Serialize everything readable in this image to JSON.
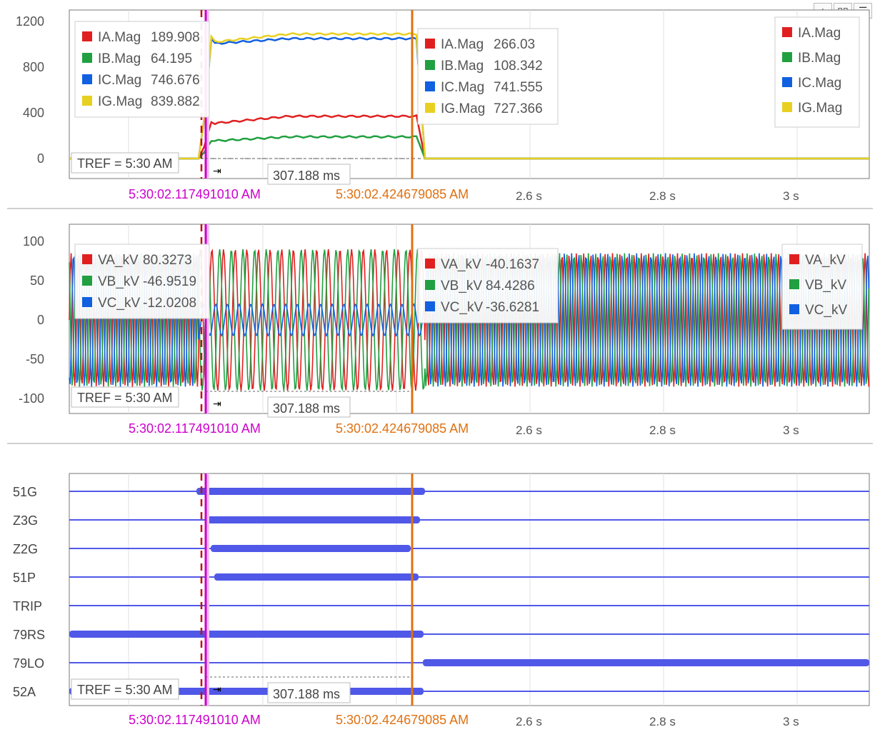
{
  "toolbar": {
    "icons": [
      "add-icon",
      "columns-icon",
      "rows-icon"
    ],
    "glyphs": [
      "+",
      "▯▯",
      "☰"
    ]
  },
  "cursors": {
    "primary_label": "5:30:02.117491010 AM",
    "secondary_label": "5:30:02.424679085 AM",
    "primary_color": "#cc00cc",
    "secondary_color": "#e07010",
    "dashed_color": "#c01010",
    "delta_label": "307.188 ms",
    "tref_label": "TREF = 5:30 AM"
  },
  "time_axis": {
    "ticks": [
      "2.6 s",
      "2.8 s",
      "3 s"
    ]
  },
  "colors": {
    "red": "#e02020",
    "green": "#20a040",
    "blue": "#1060e0",
    "yellow": "#e8d020",
    "digital": "#5058e8"
  },
  "chart_data": [
    {
      "type": "line",
      "title": "",
      "yticks": [
        "1200",
        "800",
        "400",
        "0"
      ],
      "ylim": [
        0,
        1200
      ],
      "series": [
        {
          "name": "IA.Mag",
          "color": "red",
          "pre": 0,
          "fault": [
            300,
            370
          ],
          "post": 0
        },
        {
          "name": "IB.Mag",
          "color": "green",
          "pre": 0,
          "fault": [
            150,
            190
          ],
          "post": 0
        },
        {
          "name": "IC.Mag",
          "color": "blue",
          "pre": 0,
          "fault": [
            1000,
            1050
          ],
          "post": 0
        },
        {
          "name": "IG.Mag",
          "color": "yellow",
          "pre": 0,
          "fault": [
            1010,
            1090
          ],
          "post": 0
        }
      ],
      "cursor1_values": [
        "189.908",
        "64.195",
        "746.676",
        "839.882"
      ],
      "cursor2_values": [
        "266.03",
        "108.342",
        "741.555",
        "727.366"
      ],
      "legend": [
        "IA.Mag",
        "IB.Mag",
        "IC.Mag",
        "IG.Mag"
      ]
    },
    {
      "type": "line",
      "title": "",
      "yticks": [
        "100",
        "50",
        "0",
        "-50",
        "-100"
      ],
      "ylim": [
        -100,
        100
      ],
      "series": [
        {
          "name": "VA_kV",
          "color": "red",
          "pre_amp": 85,
          "fault_amp": 90,
          "post_amp": 85
        },
        {
          "name": "VB_kV",
          "color": "green",
          "pre_amp": 85,
          "fault_amp": 90,
          "post_amp": 85
        },
        {
          "name": "VC_kV",
          "color": "blue",
          "pre_amp": 85,
          "fault_amp": 20,
          "post_amp": 85
        }
      ],
      "cursor1_values": [
        "80.3273",
        "-46.9519",
        "-12.0208"
      ],
      "cursor2_values": [
        "-40.1637",
        "84.4286",
        "-36.6281"
      ],
      "legend": [
        "VA_kV",
        "VB_kV",
        "VC_kV"
      ]
    },
    {
      "type": "digital",
      "title": "",
      "channels": [
        "51G",
        "Z3G",
        "Z2G",
        "51P",
        "TRIP",
        "79RS",
        "79LO",
        "52A"
      ]
    }
  ]
}
